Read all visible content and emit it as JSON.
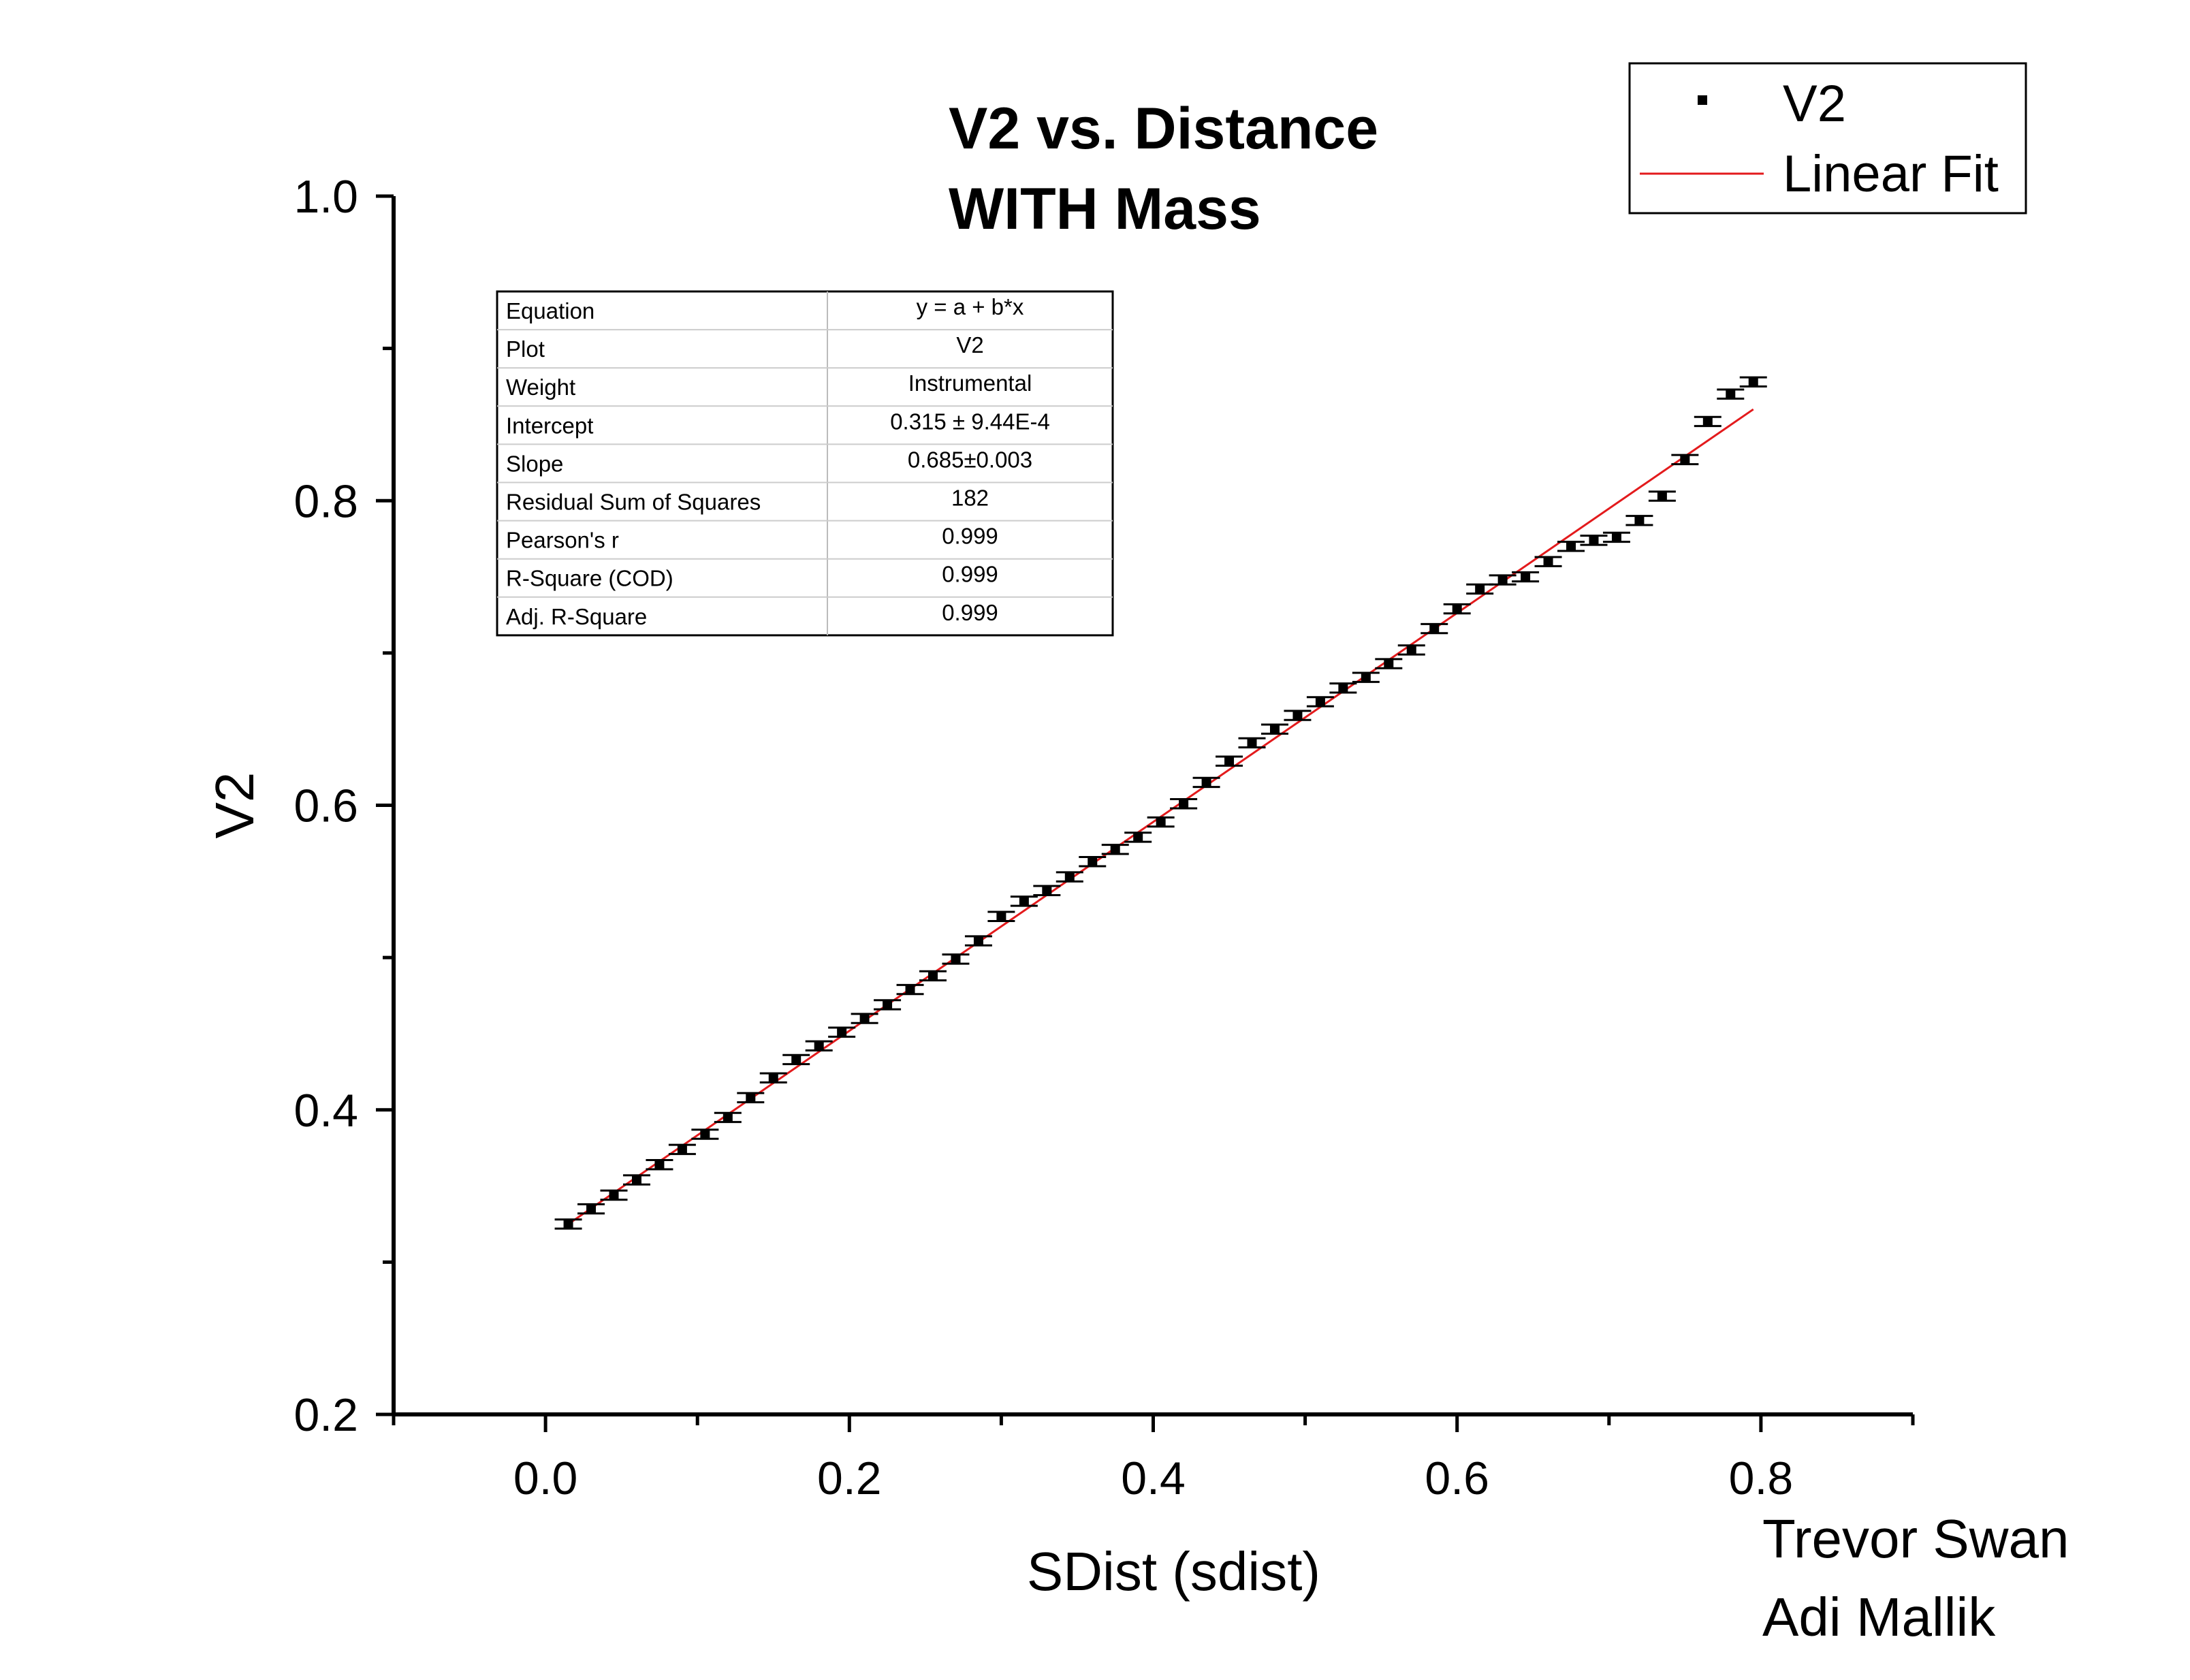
{
  "chart_data": {
    "type": "scatter",
    "title": [
      "V2  vs. Distance",
      "WITH Mass"
    ],
    "xlabel": "SDist (sdist)",
    "ylabel": "V2",
    "xlim": [
      -0.1,
      0.9
    ],
    "ylim": [
      0.2,
      1.0
    ],
    "x_ticks": [
      0.0,
      0.2,
      0.4,
      0.6,
      0.8
    ],
    "x_tick_labels": [
      "0.0",
      "0.2",
      "0.4",
      "0.6",
      "0.8"
    ],
    "y_ticks": [
      0.2,
      0.4,
      0.6,
      0.8,
      1.0
    ],
    "y_tick_labels": [
      "0.2",
      "0.4",
      "0.6",
      "0.8",
      "1.0"
    ],
    "grid": false,
    "legend_position": "top-right",
    "series": [
      {
        "name": "V2",
        "kind": "points-with-error-bars",
        "color": "#000000",
        "x": [
          0.015,
          0.03,
          0.045,
          0.06,
          0.075,
          0.09,
          0.105,
          0.12,
          0.135,
          0.15,
          0.165,
          0.18,
          0.195,
          0.21,
          0.225,
          0.24,
          0.255,
          0.27,
          0.285,
          0.3,
          0.315,
          0.33,
          0.345,
          0.36,
          0.375,
          0.39,
          0.405,
          0.42,
          0.435,
          0.45,
          0.465,
          0.48,
          0.495,
          0.51,
          0.525,
          0.54,
          0.555,
          0.57,
          0.585,
          0.6,
          0.615,
          0.63,
          0.645,
          0.66,
          0.675,
          0.69,
          0.705,
          0.72,
          0.735,
          0.75,
          0.765,
          0.78,
          0.795
        ],
        "y": [
          0.325,
          0.335,
          0.344,
          0.354,
          0.364,
          0.374,
          0.384,
          0.395,
          0.408,
          0.421,
          0.433,
          0.442,
          0.451,
          0.46,
          0.469,
          0.479,
          0.488,
          0.499,
          0.511,
          0.527,
          0.537,
          0.544,
          0.553,
          0.563,
          0.571,
          0.579,
          0.589,
          0.601,
          0.615,
          0.629,
          0.641,
          0.65,
          0.659,
          0.668,
          0.677,
          0.684,
          0.693,
          0.702,
          0.716,
          0.729,
          0.742,
          0.748,
          0.75,
          0.76,
          0.77,
          0.774,
          0.776,
          0.787,
          0.803,
          0.827,
          0.852,
          0.87,
          0.878
        ],
        "error": 0.003
      },
      {
        "name": "Linear Fit",
        "kind": "line",
        "color": "#e31a1c",
        "x": [
          0.015,
          0.795
        ],
        "y": [
          0.325,
          0.86
        ]
      }
    ],
    "fit_table": {
      "rows": [
        [
          "Equation",
          "y = a + b*x"
        ],
        [
          "Plot",
          "V2"
        ],
        [
          "Weight",
          "Instrumental"
        ],
        [
          "Intercept",
          "0.315 ± 9.44E-4"
        ],
        [
          "Slope",
          "0.685±0.003"
        ],
        [
          "Residual Sum of Squares",
          "182"
        ],
        [
          "Pearson's r",
          "0.999"
        ],
        [
          "R-Square (COD)",
          "0.999"
        ],
        [
          "Adj. R-Square",
          "0.999"
        ]
      ]
    },
    "annotations": [
      "Trevor Swan",
      "Adi Mallik"
    ]
  }
}
